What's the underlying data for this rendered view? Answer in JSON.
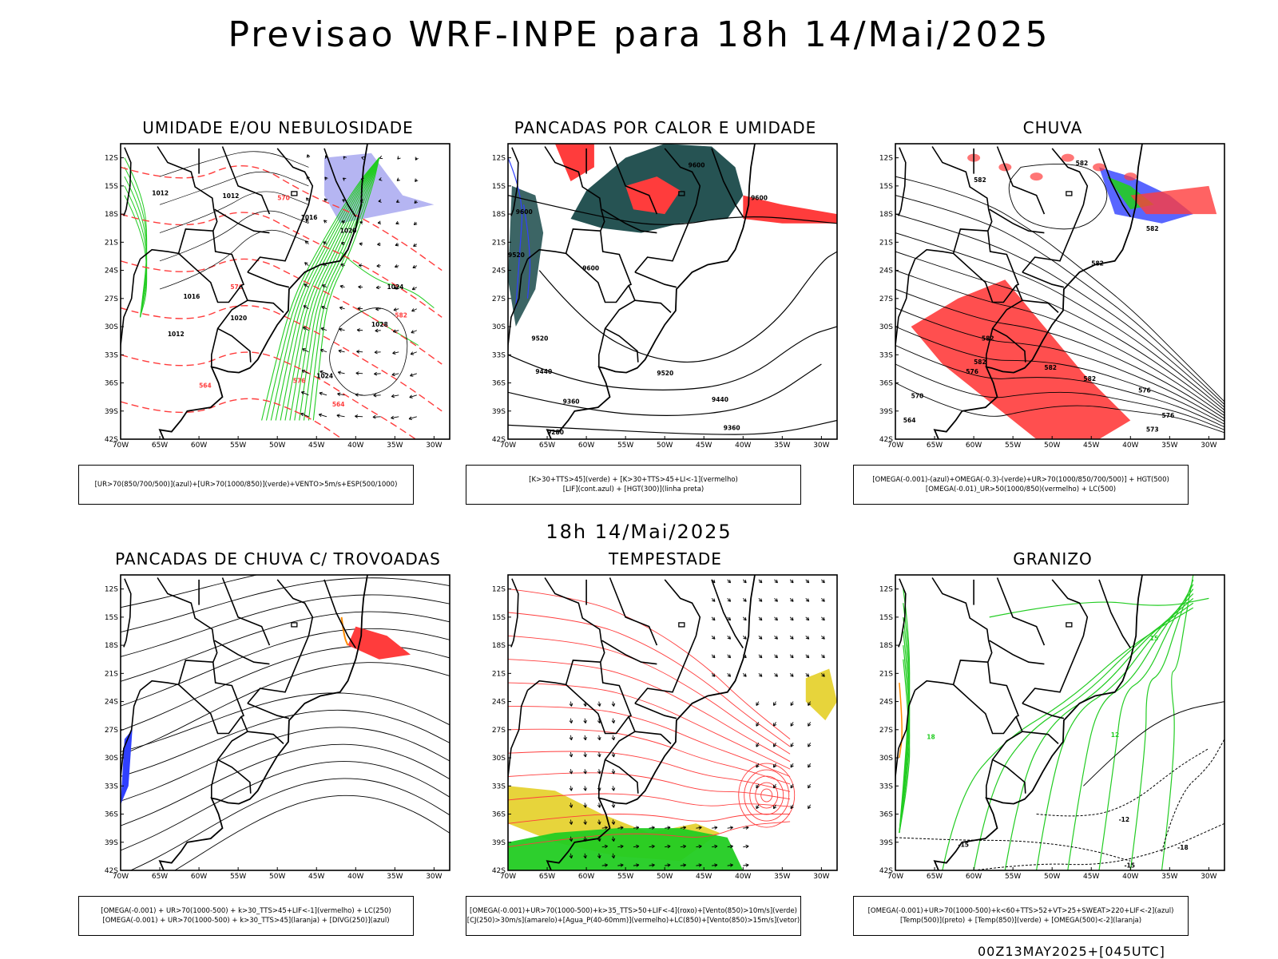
{
  "title": "Previsao WRF-INPE  para 18h 14/Mai/2025",
  "mid_title": "18h 14/Mai/2025",
  "footer": "00Z13MAY2025+[045UTC]",
  "axes": {
    "lat_labels": [
      "12S",
      "15S",
      "18S",
      "21S",
      "24S",
      "27S",
      "30S",
      "33S",
      "36S",
      "39S",
      "42S"
    ],
    "lon_labels": [
      "70W",
      "65W",
      "60W",
      "55W",
      "50W",
      "45W",
      "40W",
      "35W",
      "30W"
    ]
  },
  "colors": {
    "red": "#ff3c3c",
    "green": "#22cc22",
    "blue": "#3040ff",
    "dark_teal": "#1a4a4a",
    "lavender": "#a8a8f0",
    "yellow": "#e6d230",
    "orange": "#ff8c00",
    "black": "#000000"
  },
  "panels": [
    {
      "id": "umidade",
      "title": "UMIDADE E/OU NEBULOSIDADE",
      "legend": [
        "[UR>70(850/700/500)](azul)+[UR>70(1000/850)](verde)+VENTO>5m/s+ESP(500/1000)"
      ],
      "contour_labels": [
        "1012",
        "1016",
        "1020",
        "1024",
        "1028",
        "564",
        "570",
        "576",
        "582"
      ]
    },
    {
      "id": "pancadas-calor",
      "title": "PANCADAS POR CALOR E UMIDADE",
      "legend": [
        "[K>30+TTS>45](verde) + [K>30+TTS>45+LI<-1](vermelho)",
        "[LIF](cont.azul) + [HGT(300)](linha preta)"
      ],
      "contour_labels": [
        "9600",
        "9520",
        "9440",
        "9360",
        "9280"
      ]
    },
    {
      "id": "chuva",
      "title": "CHUVA",
      "legend": [
        "[OMEGA(-0.001)-(azul)+OMEGA(-0.3)-(verde)+UR>70(1000/850/700/500)] + HGT(500)",
        "[OMEGA(-0.01)_UR>50(1000/850)(vermelho) + LC(500)"
      ],
      "contour_labels": [
        "582",
        "576",
        "570",
        "564"
      ]
    },
    {
      "id": "pancadas-trovoadas",
      "title": "PANCADAS DE CHUVA C/ TROVOADAS",
      "legend": [
        "[OMEGA(-0.001) + UR>70(1000-500) + k>30_TTS>45+LIF<-1](vermelho) + LC(250)",
        "[OMEGA(-0.001) + UR>70(1000-500) + k>30_TTS>45](laranja) + [DIVG(250)](azul)"
      ],
      "contour_labels": []
    },
    {
      "id": "tempestade",
      "title": "TEMPESTADE",
      "legend": [
        "[OMEGA(-0.001)+UR>70(1000-500)+k>35_TTS>50+LIF<-4](roxo)+[Vento(850)>10m/s](verde)",
        "[CJ(250)>30m/s](amarelo)+[Agua_P(40-60mm)](vermelho)+LC(850)+[Vento(850)>15m/s](vetor)"
      ],
      "contour_labels": []
    },
    {
      "id": "granizo",
      "title": "GRANIZO",
      "legend": [
        "[OMEGA(-0.001)+UR>70(1000-500)+k<60+TTS>52+VT>25+SWEAT>220+LIF<-2](azul)",
        "[Temp(500)](preto) + [Temp(850)](verde) + [OMEGA(500)<-2](laranja)"
      ],
      "contour_labels": [
        "-12",
        "-15",
        "-18",
        "12",
        "15",
        "18"
      ]
    }
  ]
}
